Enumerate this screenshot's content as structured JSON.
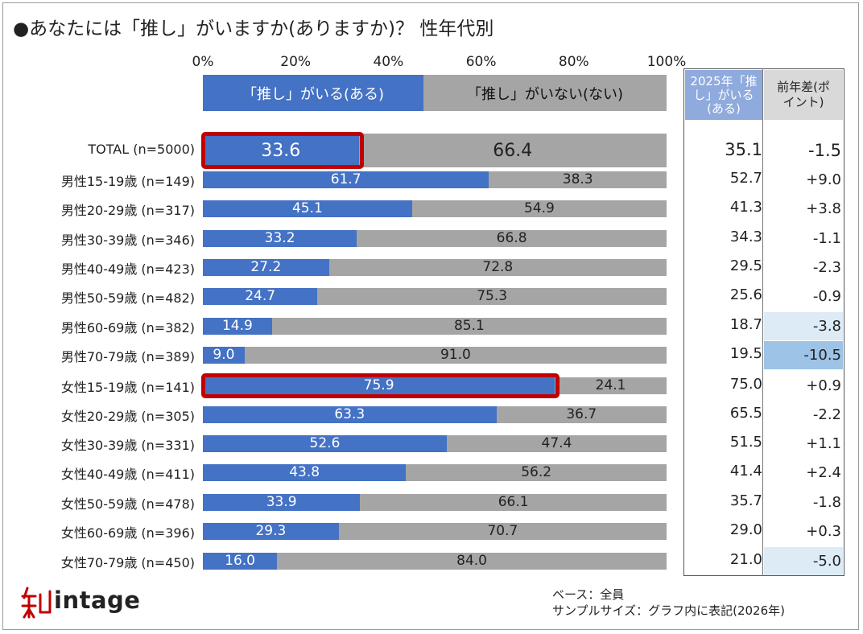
{
  "title": "●あなたには「推し」がいますか(ありますか)？  性年代別",
  "legend": {
    "yes": "「推し」がいる(ある)",
    "no": "「推し」がいない(ない)"
  },
  "axis_ticks": [
    "0%",
    "20%",
    "40%",
    "60%",
    "80%",
    "100%"
  ],
  "table_headers": {
    "col1": "2025年「推し」がいる(ある)",
    "col2": "前年差(ポイント)"
  },
  "colors": {
    "yes": "#4472c4",
    "no": "#a5a5a5",
    "highlight": "#c00000",
    "neg_light": "#ddebf7",
    "neg_strong": "#9dc3e6"
  },
  "footnote": {
    "base": "ベース：全員",
    "sample": "サンプルサイズ：グラフ内に表記(2026年)"
  },
  "logo_text": "intage",
  "chart_data": {
    "type": "bar",
    "stacked": true,
    "orientation": "horizontal",
    "xlim": [
      0,
      100
    ],
    "categories": [
      "TOTAL (n=5000)",
      "男性15-19歳 (n=149)",
      "男性20-29歳 (n=317)",
      "男性30-39歳 (n=346)",
      "男性40-49歳 (n=423)",
      "男性50-59歳 (n=482)",
      "男性60-69歳 (n=382)",
      "男性70-79歳 (n=389)",
      "女性15-19歳 (n=141)",
      "女性20-29歳 (n=305)",
      "女性30-39歳 (n=331)",
      "女性40-49歳 (n=411)",
      "女性50-59歳 (n=478)",
      "女性60-69歳 (n=396)",
      "女性70-79歳 (n=450)"
    ],
    "series": [
      {
        "name": "「推し」がいる(ある)",
        "values": [
          33.6,
          61.7,
          45.1,
          33.2,
          27.2,
          24.7,
          14.9,
          9.0,
          75.9,
          63.3,
          52.6,
          43.8,
          33.9,
          29.3,
          16.0
        ]
      },
      {
        "name": "「推し」がいない(ない)",
        "values": [
          66.4,
          38.3,
          54.9,
          66.8,
          72.8,
          75.3,
          85.1,
          91.0,
          24.1,
          36.7,
          47.4,
          56.2,
          66.1,
          70.7,
          84.0
        ]
      }
    ],
    "value_labels_yes": [
      "33.6",
      "61.7",
      "45.1",
      "33.2",
      "27.2",
      "24.7",
      "14.9",
      "9.0",
      "75.9",
      "63.3",
      "52.6",
      "43.8",
      "33.9",
      "29.3",
      "16.0"
    ],
    "value_labels_no": [
      "66.4",
      "38.3",
      "54.9",
      "66.8",
      "72.8",
      "75.3",
      "85.1",
      "91.0",
      "24.1",
      "36.7",
      "47.4",
      "56.2",
      "66.1",
      "70.7",
      "84.0"
    ],
    "prev_year_2025": [
      "35.1",
      "52.7",
      "41.3",
      "34.3",
      "29.5",
      "25.6",
      "18.7",
      "19.5",
      "75.0",
      "65.5",
      "51.5",
      "41.4",
      "35.7",
      "29.0",
      "21.0"
    ],
    "diff_points": [
      "-1.5",
      "+9.0",
      "+3.8",
      "-1.1",
      "-2.3",
      "-0.9",
      "-3.8",
      "-10.5",
      "+0.9",
      "-2.2",
      "+1.1",
      "+2.4",
      "-1.8",
      "+0.3",
      "-5.0"
    ],
    "diff_shading": [
      "none",
      "none",
      "none",
      "none",
      "none",
      "none",
      "light",
      "strong",
      "none",
      "none",
      "none",
      "none",
      "none",
      "none",
      "light"
    ],
    "highlighted_rows": [
      0,
      8
    ]
  }
}
